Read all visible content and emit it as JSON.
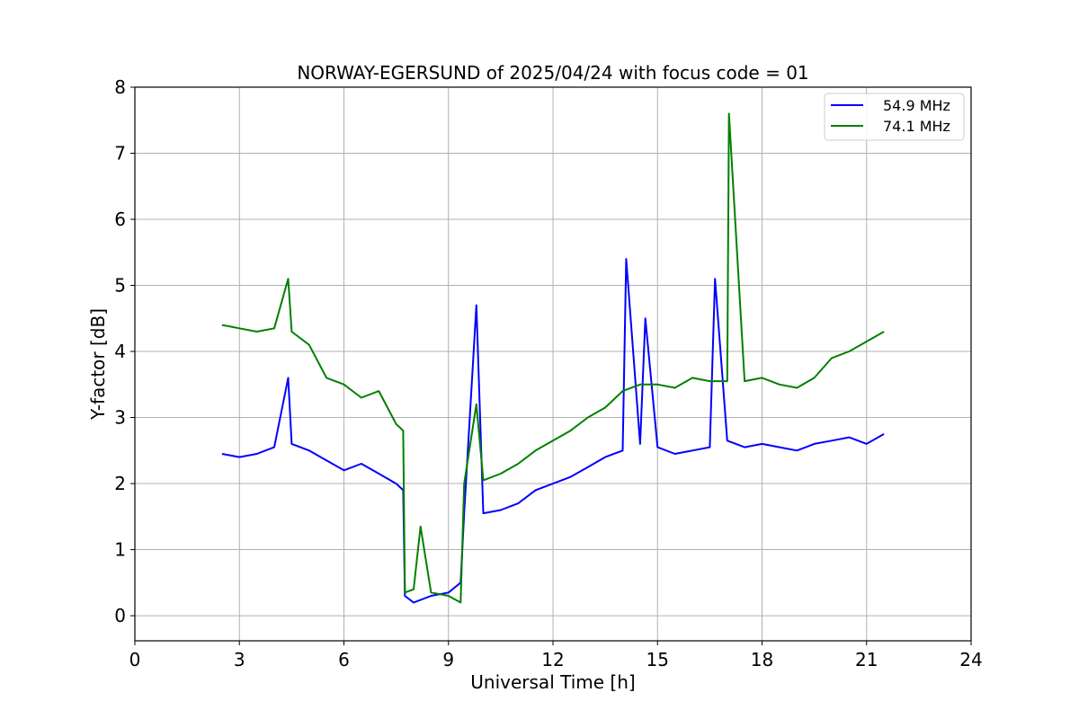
{
  "chart_data": {
    "type": "line",
    "title": "NORWAY-EGERSUND of 2025/04/24 with focus code = 01",
    "xlabel": "Universal Time [h]",
    "ylabel": "Y-factor [dB]",
    "xlim": [
      0,
      24
    ],
    "ylim": [
      -0.38,
      8
    ],
    "xticks": [
      0,
      3,
      6,
      9,
      12,
      15,
      18,
      21,
      24
    ],
    "yticks": [
      0,
      1,
      2,
      3,
      4,
      5,
      6,
      7,
      8
    ],
    "grid": true,
    "legend_position": "top-right",
    "series": [
      {
        "name": "54.9 MHz",
        "color": "#0000ff",
        "x": [
          2.5,
          3.0,
          3.5,
          4.0,
          4.4,
          4.5,
          5.0,
          5.5,
          6.0,
          6.5,
          7.0,
          7.5,
          7.7,
          7.75,
          8.0,
          8.5,
          9.0,
          9.35,
          9.45,
          9.8,
          10.0,
          10.5,
          11.0,
          11.5,
          12.0,
          12.5,
          13.0,
          13.5,
          14.0,
          14.1,
          14.5,
          14.65,
          15.0,
          15.5,
          16.0,
          16.5,
          16.65,
          17.0,
          17.5,
          18.0,
          18.5,
          19.0,
          19.5,
          20.0,
          20.5,
          21.0,
          21.5
        ],
        "y": [
          2.45,
          2.4,
          2.45,
          2.55,
          3.6,
          2.6,
          2.5,
          2.35,
          2.2,
          2.3,
          2.15,
          2.0,
          1.9,
          0.3,
          0.2,
          0.3,
          0.35,
          0.5,
          1.55,
          4.7,
          1.55,
          1.6,
          1.7,
          1.9,
          2.0,
          2.1,
          2.25,
          2.4,
          2.5,
          5.4,
          2.6,
          4.5,
          2.55,
          2.45,
          2.5,
          2.55,
          5.1,
          2.65,
          2.55,
          2.6,
          2.55,
          2.5,
          2.6,
          2.65,
          2.7,
          2.6,
          2.75
        ]
      },
      {
        "name": "74.1 MHz",
        "color": "#008000",
        "x": [
          2.5,
          3.0,
          3.5,
          4.0,
          4.4,
          4.5,
          5.0,
          5.5,
          6.0,
          6.5,
          7.0,
          7.5,
          7.7,
          7.75,
          8.0,
          8.2,
          8.5,
          9.0,
          9.35,
          9.45,
          9.8,
          10.0,
          10.5,
          11.0,
          11.5,
          12.0,
          12.5,
          13.0,
          13.5,
          14.0,
          14.5,
          15.0,
          15.5,
          16.0,
          16.5,
          17.0,
          17.05,
          17.5,
          18.0,
          18.5,
          19.0,
          19.5,
          20.0,
          20.5,
          21.0,
          21.5
        ],
        "y": [
          4.4,
          4.35,
          4.3,
          4.35,
          5.1,
          4.3,
          4.1,
          3.6,
          3.5,
          3.3,
          3.4,
          2.9,
          2.8,
          0.35,
          0.4,
          1.35,
          0.35,
          0.3,
          0.2,
          2.0,
          3.2,
          2.05,
          2.15,
          2.3,
          2.5,
          2.65,
          2.8,
          3.0,
          3.15,
          3.4,
          3.5,
          3.5,
          3.45,
          3.6,
          3.55,
          3.55,
          7.6,
          3.55,
          3.6,
          3.5,
          3.45,
          3.6,
          3.9,
          4.0,
          4.15,
          4.3
        ]
      }
    ]
  }
}
